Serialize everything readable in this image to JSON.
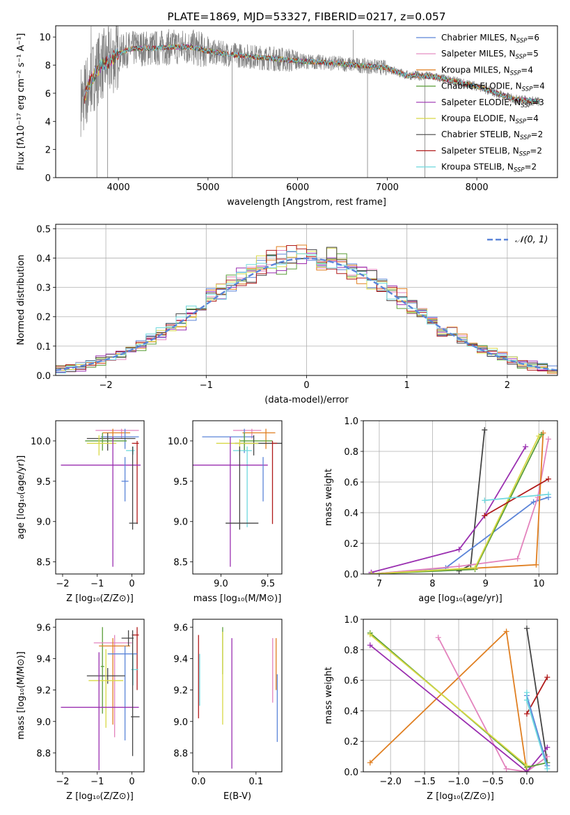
{
  "chart_data": [
    {
      "id": "spectrum",
      "type": "line",
      "title": "PLATE=1869, MJD=53327, FIBERID=0217, z=0.057",
      "xlabel": "wavelength [Angstrom, rest frame]",
      "ylabel": "Flux [fλ10⁻¹⁷ erg cm⁻² s⁻¹ A⁻¹]",
      "xlim": [
        3300,
        8900
      ],
      "ylim": [
        0,
        10.8
      ],
      "xticks": [
        4000,
        5000,
        6000,
        7000,
        8000
      ],
      "yticks": [
        0,
        2,
        4,
        6,
        8,
        10
      ],
      "grid": false,
      "legend_position": "upper right",
      "legend": [
        {
          "label": "Chabrier MILES, N_SSP=6",
          "color": "#5b84d8"
        },
        {
          "label": "Salpeter MILES, N_SSP=5",
          "color": "#e383bd"
        },
        {
          "label": "Kroupa MILES, N_SSP=4",
          "color": "#e07f21"
        },
        {
          "label": "Chabrier ELODIE, N_SSP=4",
          "color": "#5a9e38"
        },
        {
          "label": "Salpeter ELODIE, N_SSP=3",
          "color": "#9a2fb0"
        },
        {
          "label": "Kroupa ELODIE, N_SSP=4",
          "color": "#d8d845"
        },
        {
          "label": "Chabrier STELIB, N_SSP=2",
          "color": "#444444"
        },
        {
          "label": "Salpeter STELIB, N_SSP=2",
          "color": "#b01a1a"
        },
        {
          "label": "Kroupa STELIB, N_SSP=2",
          "color": "#6fd8de"
        }
      ],
      "data_color": "#808080",
      "continuum": {
        "x": [
          3600,
          3700,
          3800,
          3900,
          4000,
          4100,
          4200,
          4400,
          4600,
          4800,
          5000,
          5200,
          5500,
          6000,
          6500,
          7000,
          7200,
          7500,
          8000,
          8400,
          8700
        ],
        "y": [
          5.5,
          7.0,
          8.0,
          8.2,
          8.8,
          9.1,
          9.2,
          9.2,
          9.3,
          9.3,
          9.0,
          8.8,
          8.6,
          8.3,
          8.1,
          7.8,
          7.3,
          7.2,
          6.5,
          5.6,
          5.4
        ]
      }
    },
    {
      "id": "residuals",
      "type": "histogram",
      "xlabel": "(data-model)/error",
      "ylabel": "Normed distribution",
      "xlim": [
        -2.5,
        2.5
      ],
      "ylim": [
        0,
        0.515
      ],
      "xticks": [
        -2,
        -1,
        0,
        1,
        2
      ],
      "yticks": [
        0.0,
        0.1,
        0.2,
        0.3,
        0.4,
        0.5
      ],
      "grid": true,
      "legend_position": "upper right",
      "reference": {
        "label": "𝒩(0, 1)",
        "color": "#5b84d8",
        "mu": 0,
        "sigma": 1
      },
      "bin_width": 0.1,
      "series_colors": [
        "#5b84d8",
        "#e383bd",
        "#e07f21",
        "#5a9e38",
        "#9a2fb0",
        "#d8d845",
        "#444444",
        "#b01a1a",
        "#6fd8de"
      ]
    },
    {
      "id": "age-vs-Z",
      "type": "errorbar",
      "xlabel": "Z [log₁₀(Z/Z⊙)]",
      "ylabel": "age  [log₁₀(age/yr)]",
      "xlim": [
        -2.2,
        0.35
      ],
      "ylim": [
        8.35,
        10.25
      ],
      "xticks": [
        -2,
        -1,
        0
      ],
      "yticks": [
        8.5,
        9.0,
        9.5,
        10.0
      ],
      "points": [
        {
          "color": "#e383bd",
          "x": -0.3,
          "xerr": [
            0.75,
            0.5
          ],
          "y": 10.13,
          "yerr": [
            0.1,
            0.02
          ]
        },
        {
          "color": "#e07f21",
          "x": -0.55,
          "xerr": [
            0.3,
            0.5
          ],
          "y": 10.1,
          "yerr": [
            0.1,
            0.05
          ]
        },
        {
          "color": "#5b84d8",
          "x": -0.2,
          "xerr": [
            0.7,
            0.4
          ],
          "y": 10.05,
          "yerr": [
            0.15,
            0.1
          ]
        },
        {
          "color": "#444444",
          "x": -0.7,
          "xerr": [
            0.6,
            0.8
          ],
          "y": 10.03,
          "yerr": [
            0.15,
            0.07
          ]
        },
        {
          "color": "#5a9e38",
          "x": -0.85,
          "xerr": [
            0.5,
            0.7
          ],
          "y": 10.0,
          "yerr": [
            0.12,
            0.1
          ]
        },
        {
          "color": "#d8d845",
          "x": -0.95,
          "xerr": [
            0.35,
            0.5
          ],
          "y": 9.97,
          "yerr": [
            0.15,
            0.1
          ]
        },
        {
          "color": "#b01a1a",
          "x": 0.15,
          "xerr": [
            0.15,
            0.05
          ],
          "y": 9.97,
          "yerr": [
            1.0,
            0.03
          ]
        },
        {
          "color": "#6fd8de",
          "x": 0.03,
          "xerr": [
            0.2,
            0.05
          ],
          "y": 9.88,
          "yerr": [
            0.05,
            0.05
          ]
        },
        {
          "color": "#9a2fb0",
          "x": -0.55,
          "xerr": [
            1.5,
            0.8
          ],
          "y": 9.7,
          "yerr": [
            1.26,
            0.35
          ]
        },
        {
          "color": "#444444",
          "x": 0.02,
          "xerr": [
            0.1,
            0.15
          ],
          "y": 8.98,
          "yerr": [
            0.08,
            0.95
          ]
        },
        {
          "color": "#5b84d8",
          "x": -0.2,
          "xerr": [
            0.1,
            0.1
          ],
          "y": 9.5,
          "yerr": [
            0.25,
            0.3
          ]
        }
      ]
    },
    {
      "id": "age-vs-mass",
      "type": "errorbar",
      "xlabel": "mass [log₁₀(M/M⊙)]",
      "ylabel": "",
      "xlim": [
        8.7,
        9.65
      ],
      "ylim": [
        8.35,
        10.25
      ],
      "xticks": [
        9.0,
        9.5
      ],
      "yticks": [
        8.5,
        9.0,
        9.5,
        10.0
      ],
      "points": [
        {
          "color": "#e383bd",
          "x": 9.33,
          "xerr": [
            0.2,
            0.1
          ],
          "y": 10.13,
          "yerr": [
            0.1,
            0.02
          ]
        },
        {
          "color": "#e07f21",
          "x": 9.48,
          "xerr": [
            0.25,
            0.1
          ],
          "y": 10.1,
          "yerr": [
            0.2,
            0.05
          ]
        },
        {
          "color": "#5b84d8",
          "x": 9.25,
          "xerr": [
            0.45,
            0.1
          ],
          "y": 10.05,
          "yerr": [
            0.2,
            0.1
          ]
        },
        {
          "color": "#5a9e38",
          "x": 9.25,
          "xerr": [
            0.05,
            0.3
          ],
          "y": 10.0,
          "yerr": [
            0.12,
            0.1
          ]
        },
        {
          "color": "#444444",
          "x": 9.35,
          "xerr": [
            0.2,
            0.3
          ],
          "y": 9.97,
          "yerr": [
            0.15,
            0.1
          ]
        },
        {
          "color": "#d8d845",
          "x": 9.2,
          "xerr": [
            0.25,
            0.2
          ],
          "y": 9.97,
          "yerr": [
            0.15,
            0.05
          ]
        },
        {
          "color": "#b01a1a",
          "x": 9.55,
          "xerr": [
            0.0,
            0.05
          ],
          "y": 9.97,
          "yerr": [
            1.0,
            0.03
          ]
        },
        {
          "color": "#6fd8de",
          "x": 9.28,
          "xerr": [
            0.15,
            0.05
          ],
          "y": 9.88,
          "yerr": [
            0.95,
            0.05
          ]
        },
        {
          "color": "#9a2fb0",
          "x": 9.1,
          "xerr": [
            0.4,
            0.4
          ],
          "y": 9.7,
          "yerr": [
            1.26,
            0.35
          ]
        },
        {
          "color": "#444444",
          "x": 9.2,
          "xerr": [
            0.15,
            0.2
          ],
          "y": 8.98,
          "yerr": [
            0.08,
            0.95
          ]
        },
        {
          "color": "#5b84d8",
          "x": 9.45,
          "xerr": [
            0.0,
            0.0
          ],
          "y": 9.5,
          "yerr": [
            0.25,
            0.3
          ]
        }
      ]
    },
    {
      "id": "massweight-vs-age",
      "type": "line",
      "xlabel": "age  [log₁₀(age/yr)]",
      "ylabel": "mass weight",
      "xlim": [
        6.7,
        10.35
      ],
      "ylim": [
        0,
        1.0
      ],
      "xticks": [
        7,
        8,
        9,
        10
      ],
      "yticks": [
        0.0,
        0.2,
        0.4,
        0.6,
        0.8,
        1.0
      ],
      "grid": true,
      "series": [
        {
          "color": "#444444",
          "x": [
            8.5,
            8.72,
            8.98
          ],
          "y": [
            0.02,
            0.06,
            0.94
          ]
        },
        {
          "color": "#5b84d8",
          "x": [
            6.85,
            8.25,
            9.9,
            10.18
          ],
          "y": [
            0.0,
            0.04,
            0.47,
            0.5
          ]
        },
        {
          "color": "#e383bd",
          "x": [
            6.85,
            8.5,
            9.6,
            9.98,
            10.18
          ],
          "y": [
            0.0,
            0.05,
            0.1,
            0.5,
            0.88
          ]
        },
        {
          "color": "#e07f21",
          "x": [
            6.85,
            9.95,
            10.08
          ],
          "y": [
            0.0,
            0.06,
            0.92
          ]
        },
        {
          "color": "#9a2fb0",
          "x": [
            6.85,
            8.5,
            8.98,
            9.75
          ],
          "y": [
            0.01,
            0.16,
            0.38,
            0.83
          ]
        },
        {
          "color": "#5a9e38",
          "x": [
            6.85,
            8.8,
            10.05
          ],
          "y": [
            0.0,
            0.03,
            0.91
          ]
        },
        {
          "color": "#d8d845",
          "x": [
            6.85,
            8.8,
            10.0
          ],
          "y": [
            0.0,
            0.04,
            0.9
          ]
        },
        {
          "color": "#b01a1a",
          "x": [
            8.98,
            10.18
          ],
          "y": [
            0.38,
            0.62
          ]
        },
        {
          "color": "#6fd8de",
          "x": [
            8.98,
            10.18
          ],
          "y": [
            0.48,
            0.52
          ]
        }
      ]
    },
    {
      "id": "mass-vs-Z",
      "type": "errorbar",
      "xlabel": "Z [log₁₀(Z/Z⊙)]",
      "ylabel": "mass [log₁₀(M/M⊙)]",
      "xlim": [
        -2.2,
        0.35
      ],
      "ylim": [
        8.68,
        9.65
      ],
      "xticks": [
        -2,
        -1,
        0
      ],
      "yticks": [
        8.8,
        9.0,
        9.2,
        9.4,
        9.6
      ],
      "points": [
        {
          "color": "#b01a1a",
          "x": 0.15,
          "xerr": [
            0.15,
            0.05
          ],
          "y": 9.55,
          "yerr": [
            0.35,
            0.05
          ]
        },
        {
          "color": "#5a9e38",
          "x": -0.85,
          "xerr": [
            0.05,
            0.05
          ],
          "y": 9.35,
          "yerr": [
            0.3,
            0.25
          ]
        },
        {
          "color": "#e383bd",
          "x": -0.5,
          "xerr": [
            0.6,
            0.5
          ],
          "y": 9.5,
          "yerr": [
            0.6,
            0.05
          ]
        },
        {
          "color": "#e07f21",
          "x": -0.55,
          "xerr": [
            0.4,
            0.5
          ],
          "y": 9.48,
          "yerr": [
            0.5,
            0.05
          ]
        },
        {
          "color": "#444444",
          "x": -0.1,
          "xerr": [
            0.2,
            0.15
          ],
          "y": 9.53,
          "yerr": [
            0.05,
            0.05
          ]
        },
        {
          "color": "#5b84d8",
          "x": -0.2,
          "xerr": [
            0.5,
            0.35
          ],
          "y": 9.43,
          "yerr": [
            0.55,
            0.05
          ]
        },
        {
          "color": "#6fd8de",
          "x": 0.03,
          "xerr": [
            0.05,
            0.15
          ],
          "y": 9.33,
          "yerr": [
            0.1,
            0.1
          ]
        },
        {
          "color": "#444444",
          "x": -0.7,
          "xerr": [
            0.6,
            0.5
          ],
          "y": 9.29,
          "yerr": [
            0.05,
            0.05
          ]
        },
        {
          "color": "#d8d845",
          "x": -0.75,
          "xerr": [
            0.5,
            0.5
          ],
          "y": 9.26,
          "yerr": [
            0.3,
            0.2
          ]
        },
        {
          "color": "#9a2fb0",
          "x": -0.95,
          "xerr": [
            1.1,
            1.15
          ],
          "y": 9.09,
          "yerr": [
            0.4,
            0.35
          ]
        },
        {
          "color": "#444444",
          "x": 0.02,
          "xerr": [
            0.05,
            0.2
          ],
          "y": 9.03,
          "yerr": [
            0.25,
            0.55
          ]
        }
      ]
    },
    {
      "id": "mass-vs-EBV",
      "type": "errorbar",
      "xlabel": "E(B-V)",
      "ylabel": "",
      "xlim": [
        -0.01,
        0.145
      ],
      "ylim": [
        8.68,
        9.65
      ],
      "xticks": [
        0.0,
        0.1
      ],
      "yticks": [
        8.8,
        9.0,
        9.2,
        9.4,
        9.6
      ],
      "vlines": [
        {
          "color": "#b01a1a",
          "x": 0.0,
          "y": [
            9.02,
            9.55
          ]
        },
        {
          "color": "#6fd8de",
          "x": 0.002,
          "y": [
            9.1,
            9.43
          ]
        },
        {
          "color": "#5a9e38",
          "x": 0.042,
          "y": [
            9.3,
            9.6
          ]
        },
        {
          "color": "#d8d845",
          "x": 0.042,
          "y": [
            8.98,
            9.57
          ]
        },
        {
          "color": "#9a2fb0",
          "x": 0.058,
          "y": [
            8.7,
            9.53
          ]
        },
        {
          "color": "#e383bd",
          "x": 0.129,
          "y": [
            9.12,
            9.53
          ]
        },
        {
          "color": "#e07f21",
          "x": 0.135,
          "y": [
            9.2,
            9.53
          ]
        },
        {
          "color": "#5b84d8",
          "x": 0.137,
          "y": [
            8.87,
            9.3
          ]
        }
      ]
    },
    {
      "id": "massweight-vs-Z",
      "type": "line",
      "xlabel": "Z [log₁₀(Z/Z⊙)]",
      "ylabel": "mass weight",
      "xlim": [
        -2.4,
        0.45
      ],
      "ylim": [
        0,
        1.0
      ],
      "xticks": [
        -2.0,
        -1.5,
        -1.0,
        -0.5,
        0.0
      ],
      "yticks": [
        0.0,
        0.2,
        0.4,
        0.6,
        0.8,
        1.0
      ],
      "grid": true,
      "series": [
        {
          "color": "#444444",
          "x": [
            0.0,
            0.3
          ],
          "y": [
            0.94,
            0.06
          ]
        },
        {
          "color": "#e07f21",
          "x": [
            -2.3,
            -0.3,
            0.0
          ],
          "y": [
            0.06,
            0.92,
            0.0
          ]
        },
        {
          "color": "#e383bd",
          "x": [
            -1.3,
            -0.3,
            0.0,
            0.3
          ],
          "y": [
            0.88,
            0.02,
            0.0,
            0.1
          ]
        },
        {
          "color": "#9a2fb0",
          "x": [
            -2.3,
            0.0,
            0.3
          ],
          "y": [
            0.83,
            0.0,
            0.16
          ]
        },
        {
          "color": "#5a9e38",
          "x": [
            -2.3,
            0.0,
            0.3
          ],
          "y": [
            0.91,
            0.03,
            0.06
          ]
        },
        {
          "color": "#d8d845",
          "x": [
            -2.3,
            0.0
          ],
          "y": [
            0.9,
            0.04
          ]
        },
        {
          "color": "#b01a1a",
          "x": [
            0.0,
            0.3
          ],
          "y": [
            0.38,
            0.62
          ]
        },
        {
          "color": "#5b84d8",
          "x": [
            0.0,
            0.3
          ],
          "y": [
            0.5,
            0.04
          ]
        },
        {
          "color": "#6fd8de",
          "x": [
            0.0,
            0.0,
            0.3
          ],
          "y": [
            0.52,
            0.47,
            0.02
          ]
        }
      ]
    }
  ]
}
